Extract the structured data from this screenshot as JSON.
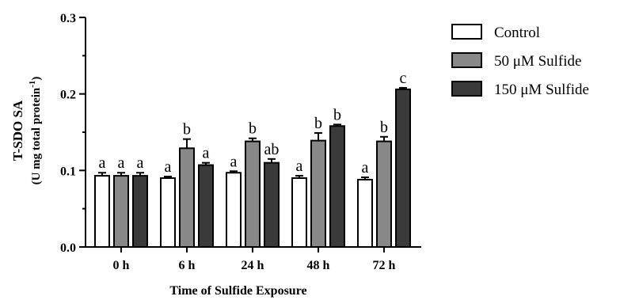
{
  "chart_data": {
    "type": "bar",
    "categories": [
      "0 h",
      "6 h",
      "24 h",
      "48 h",
      "72 h"
    ],
    "series": [
      {
        "name": "Control",
        "color": "#ffffff",
        "values": [
          0.093,
          0.09,
          0.097,
          0.09,
          0.088
        ],
        "errors": [
          0.004,
          0.002,
          0.002,
          0.003,
          0.003
        ],
        "labels": [
          "a",
          "a",
          "a",
          "a",
          "a"
        ]
      },
      {
        "name": "50 μM Sulfide",
        "color": "#888888",
        "values": [
          0.093,
          0.129,
          0.138,
          0.139,
          0.138
        ],
        "errors": [
          0.004,
          0.012,
          0.004,
          0.01,
          0.006
        ],
        "labels": [
          "a",
          "b",
          "b",
          "b",
          "b"
        ]
      },
      {
        "name": "150 μM Sulfide",
        "color": "#3a3a3a",
        "values": [
          0.093,
          0.107,
          0.11,
          0.158,
          0.206
        ],
        "errors": [
          0.004,
          0.003,
          0.005,
          0.002,
          0.002
        ],
        "labels": [
          "a",
          "a",
          "ab",
          "b",
          "c"
        ]
      }
    ],
    "xlabel": "Time of Sulfide Exposure",
    "ylabel_line1": "T-SDO SA",
    "ylabel_line2": "(U mg total protein",
    "ylabel_sup": "-1",
    "ylabel_close": ")",
    "ylim": [
      0.0,
      0.3
    ],
    "yticks": [
      "0.0",
      "0.1",
      "0.2",
      "0.3"
    ],
    "legend_position": "top-right",
    "grid": false
  }
}
